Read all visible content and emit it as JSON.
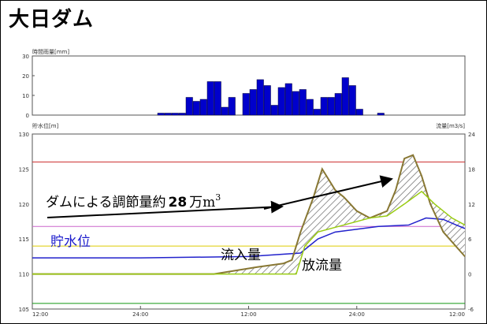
{
  "title": "大日ダム",
  "chart_data": [
    {
      "type": "bar",
      "ylabel": "時間雨量[mm]",
      "ylim": [
        0,
        30
      ],
      "yticks": [
        "0",
        "10",
        "20",
        "30"
      ],
      "bar_color": "#0000cc",
      "values": [
        1,
        1,
        1,
        1,
        9,
        7,
        8,
        17,
        17,
        4,
        9,
        0,
        11,
        13,
        18,
        15,
        5,
        14,
        16,
        12,
        13,
        8,
        3,
        9,
        9,
        11,
        19,
        15,
        3,
        0,
        0,
        1
      ]
    },
    {
      "type": "line",
      "ylabel_left": "貯水位[m]",
      "ylabel_right": "流量[m3/s]",
      "ylim_left": [
        105,
        130
      ],
      "ylim_right": [
        -6,
        24
      ],
      "yticks_left": [
        "105",
        "110",
        "115",
        "120",
        "125",
        "130"
      ],
      "yticks_right": [
        "-6",
        "0",
        "6",
        "12",
        "18",
        "24"
      ],
      "xticks": [
        "12:00",
        "24:00",
        "12:00",
        "24:00",
        "12:00"
      ],
      "reference_lines": [
        {
          "color": "#cc3333",
          "value": 126
        },
        {
          "color": "#cc66cc",
          "value": 116.8
        },
        {
          "color": "#ddcc00",
          "value": 114
        },
        {
          "color": "#119911",
          "value": 105.8
        }
      ],
      "series": [
        {
          "color": "#2222cc",
          "points": [
            [
              0,
              112.3
            ],
            [
              0.25,
              112.3
            ],
            [
              0.5,
              112.5
            ],
            [
              0.62,
              113
            ],
            [
              0.66,
              115
            ],
            [
              0.7,
              116
            ],
            [
              0.8,
              116.8
            ],
            [
              0.87,
              117
            ],
            [
              0.91,
              118
            ],
            [
              0.95,
              117.8
            ],
            [
              0.98,
              117
            ],
            [
              1,
              116.5
            ]
          ]
        },
        {
          "color": "#887733",
          "points": [
            [
              0,
              110
            ],
            [
              0.3,
              110
            ],
            [
              0.42,
              110
            ],
            [
              0.52,
              111
            ],
            [
              0.58,
              111.5
            ],
            [
              0.6,
              112
            ],
            [
              0.62,
              116
            ],
            [
              0.65,
              121
            ],
            [
              0.67,
              125
            ],
            [
              0.7,
              122
            ],
            [
              0.72,
              121
            ],
            [
              0.75,
              119
            ],
            [
              0.78,
              118
            ],
            [
              0.82,
              119
            ],
            [
              0.84,
              122
            ],
            [
              0.86,
              126.5
            ],
            [
              0.88,
              127
            ],
            [
              0.9,
              124
            ],
            [
              0.92,
              120
            ],
            [
              0.95,
              116
            ],
            [
              1,
              112.5
            ]
          ]
        },
        {
          "color": "#99cc11",
          "points": [
            [
              0,
              110
            ],
            [
              0.61,
              110
            ],
            [
              0.63,
              114
            ],
            [
              0.66,
              116
            ],
            [
              0.72,
              117
            ],
            [
              0.78,
              118
            ],
            [
              0.82,
              118.3
            ],
            [
              0.86,
              120
            ],
            [
              0.9,
              121.8
            ],
            [
              0.93,
              120
            ],
            [
              0.97,
              118
            ],
            [
              1,
              117
            ]
          ]
        }
      ],
      "annotations": {
        "reduction": "ダムによる調節量約",
        "reduction_value": "28",
        "reduction_unit": "万m",
        "reduction_sup": "3",
        "storage": "貯水位",
        "inflow": "流入量",
        "outflow": "放流量"
      }
    }
  ]
}
